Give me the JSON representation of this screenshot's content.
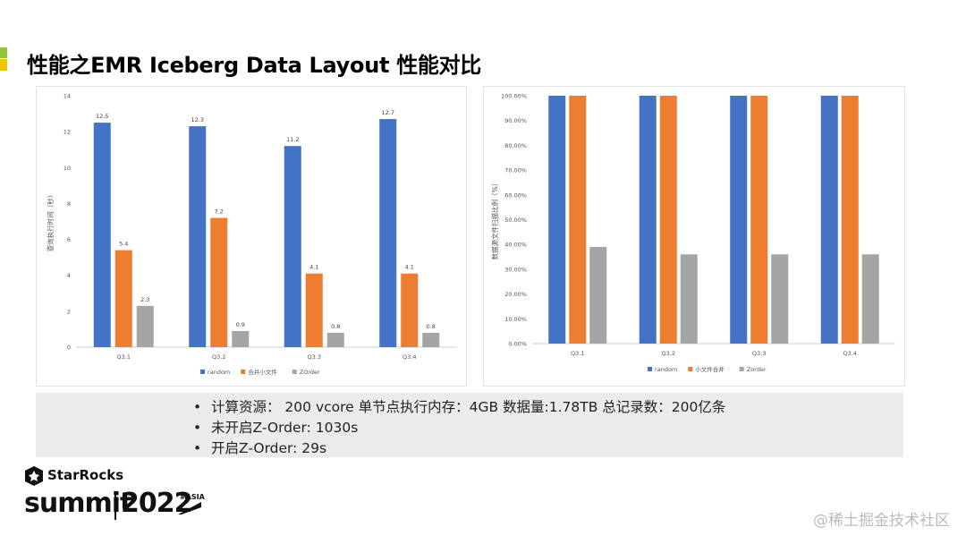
{
  "slide": {
    "title": "性能之EMR Iceberg Data Layout 性能对比"
  },
  "chart_data": [
    {
      "type": "bar",
      "ylabel": "查询执行时间（秒）",
      "xlabel": "",
      "ylim": [
        0,
        14
      ],
      "yticks": [
        0,
        2,
        4,
        6,
        8,
        10,
        12,
        14
      ],
      "categories": [
        "Q3.1",
        "Q3.2",
        "Q3.3",
        "Q3.4"
      ],
      "series": [
        {
          "name": "random",
          "color": "#4472c4",
          "values": [
            12.5,
            12.3,
            11.2,
            12.7
          ]
        },
        {
          "name": "合并小文件",
          "color": "#ed7d31",
          "values": [
            5.4,
            7.2,
            4.1,
            4.1
          ]
        },
        {
          "name": "ZOrder",
          "color": "#a5a5a5",
          "values": [
            2.3,
            0.9,
            0.8,
            0.8
          ]
        }
      ],
      "data_labels": true,
      "legend": "bottom",
      "grid": false
    },
    {
      "type": "bar",
      "ylabel": "数据源文件扫描比例（%）",
      "xlabel": "",
      "ylim": [
        0,
        100
      ],
      "yticks": [
        0,
        10,
        20,
        30,
        40,
        50,
        60,
        70,
        80,
        90,
        100
      ],
      "ytick_labels": [
        "0.00%",
        "10.00%",
        "20.00%",
        "30.00%",
        "40.00%",
        "50.00%",
        "60.00%",
        "70.00%",
        "80.00%",
        "90.00%",
        "100.00%"
      ],
      "categories": [
        "Q3.1",
        "Q3.2",
        "Q3.3",
        "Q3.4"
      ],
      "series": [
        {
          "name": "random",
          "color": "#4472c4",
          "values": [
            100,
            100,
            100,
            100
          ]
        },
        {
          "name": "小文件合并",
          "color": "#ed7d31",
          "values": [
            100,
            100,
            100,
            100
          ]
        },
        {
          "name": "Zorder",
          "color": "#a5a5a5",
          "values": [
            39,
            36,
            36,
            36
          ]
        }
      ],
      "data_labels": false,
      "legend": "bottom",
      "grid": false
    }
  ],
  "info": {
    "bullet_symbol": "•",
    "items": [
      "计算资源：  200 vcore   单节点执行内存：4GB   数据量:1.78TB  总记录数：200亿条",
      "未开启Z-Order: 1030s",
      "开启Z-Order:  29s"
    ]
  },
  "logo": {
    "brand": "StarRocks",
    "event": "summit",
    "year": "2022",
    "tag": "#ASIA"
  },
  "watermark": "@稀土掘金技术社区"
}
